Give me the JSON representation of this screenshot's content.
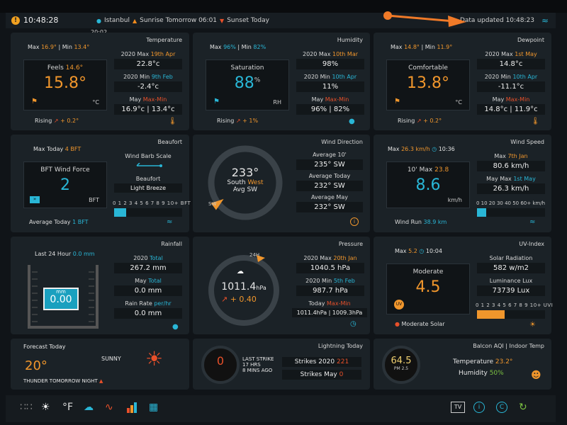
{
  "status": {
    "time": "10:48:28",
    "warning_icon": "!",
    "location": "Istanbul",
    "sunrise": "Sunrise Tomorrow 06:01",
    "sunset": "Sunset Today",
    "updated": "Data updated 10:48:23",
    "sub_time": "20:02"
  },
  "temperature": {
    "title": "Temperature",
    "max_lbl": "Max",
    "max": "16.9°",
    "min_lbl": "| Min",
    "min": "13.4°",
    "feels_lbl": "Feels",
    "feels": "14.6°",
    "value": "15.8°",
    "unit": "°C",
    "s1_lbl_a": "2020 Max",
    "s1_lbl_b": "19th Apr",
    "s1": "22.8°c",
    "s2_lbl_a": "2020 Min",
    "s2_lbl_b": "9th Feb",
    "s2": "-2.4°c",
    "s3_lbl_a": "May",
    "s3_lbl_b": "Max-Min",
    "s3": "16.9°c | 13.4°c",
    "trend_lbl": "Rising",
    "trend": "+ 0.2°"
  },
  "humidity": {
    "title": "Humidity",
    "max_lbl": "Max",
    "max": "96%",
    "min_lbl": "| Min",
    "min": "82%",
    "lbl": "Saturation",
    "value": "88",
    "sup": "%",
    "unit": "RH",
    "s1_lbl_a": "2020 Max",
    "s1_lbl_b": "10th Mar",
    "s1": "98%",
    "s2_lbl_a": "2020 Min",
    "s2_lbl_b": "10th Apr",
    "s2": "11%",
    "s3_lbl_a": "May",
    "s3_lbl_b": "Max-Min",
    "s3": "96% | 82%",
    "trend_lbl": "Rising",
    "trend": "+ 1%"
  },
  "dewpoint": {
    "title": "Dewpoint",
    "max_lbl": "Max",
    "max": "14.8°",
    "min_lbl": "| Min",
    "min": "11.9°",
    "lbl": "Comfortable",
    "value": "13.8°",
    "unit": "°C",
    "s1_lbl_a": "2020 Max",
    "s1_lbl_b": "1st May",
    "s1": "14.8°c",
    "s2_lbl_a": "2020 Min",
    "s2_lbl_b": "10th Apr",
    "s2": "-11.1°c",
    "s3_lbl_a": "May",
    "s3_lbl_b": "Max-Min",
    "s3": "14.8°c | 11.9°c",
    "trend_lbl": "Rising",
    "trend": "+ 0.2°"
  },
  "beaufort": {
    "title": "Beaufort",
    "max_lbl": "Max Today",
    "max": "4 BFT",
    "lbl": "BFT Wind Force",
    "value": "2",
    "unit": "BFT",
    "barb_lbl": "Wind Barb Scale",
    "name_lbl": "Beaufort",
    "name": "Light Breeze",
    "scale": "0 1 2 3 4 5 6 7 8 9 10+ BFT",
    "avg_lbl": "Average Today",
    "avg": "1 BFT",
    "level_fraction": 0.18
  },
  "wind_dir": {
    "title": "Wind Direction",
    "deg": "233°",
    "dir_a": "South",
    "dir_b": "West",
    "avg": "Avg SW",
    "a1_lbl": "Average 10'",
    "a1": "235°  SW",
    "a2_lbl": "Average Today",
    "a2": "232°  SW",
    "a3_lbl": "Average May",
    "a3": "232°  SW",
    "compass_mark": "SW",
    "direction_deg": 233
  },
  "wind_speed": {
    "title": "Wind Speed",
    "max_lbl": "Max",
    "max": "26.3 km/h",
    "time": "10:36",
    "lbl_a": "10'",
    "lbl_b": "Max",
    "lbl_max": "23.8",
    "value": "8.6",
    "unit": "km/h",
    "s1_lbl_a": "Max",
    "s1_lbl_b": "7th Jan",
    "s1": "80.6 km/h",
    "s2_lbl_a": "May Max",
    "s2_lbl_b": "1st May",
    "s2": "26.3 km/h",
    "scale": "0 10 20 30 40 50 60+ km/h",
    "run_lbl": "Wind Run",
    "run": "38.9 km",
    "level_fraction": 0.14
  },
  "rainfall": {
    "title": "Rainfall",
    "last_lbl": "Last 24 Hour",
    "last": "0.0 mm",
    "gauge_unit": "mm",
    "gauge": "0.00",
    "s1_lbl_a": "2020",
    "s1_lbl_b": "Total",
    "s1": "267.2 mm",
    "s2_lbl_a": "May",
    "s2_lbl_b": "Total",
    "s2": "0.0 mm",
    "s3_lbl_a": "Rain Rate",
    "s3_lbl_b": "per/hr",
    "s3": "0.0 mm"
  },
  "pressure": {
    "title": "Pressure",
    "tag": "24H",
    "value": "1011.4",
    "unit": "hPa",
    "trend": "+ 0.40",
    "s1_lbl_a": "2020 Max",
    "s1_lbl_b": "20th Jan",
    "s1": "1040.5 hPa",
    "s2_lbl_a": "2020 Min",
    "s2_lbl_b": "5th Feb",
    "s2": "987.7 hPa",
    "s3_lbl_a": "Today",
    "s3_lbl_b": "Max-Min",
    "s3": "1011.4hPa | 1009.3hPa"
  },
  "uv": {
    "title": "UV-Index",
    "max_lbl": "Max",
    "max": "5.2",
    "time": "10:04",
    "lbl": "Moderate",
    "value": "4.5",
    "badge": "UV",
    "s1_lbl": "Solar Radiation",
    "s1": "582 w/m2",
    "s2_lbl": "Luminance Lux",
    "s2": "73739 Lux",
    "scale": "0 1 2 3 4 5 6 7 8 9 10+ UVI",
    "solar_lbl": "Moderate Solar",
    "level_fraction": 0.41
  },
  "forecast": {
    "title": "Forecast Today",
    "cond": "SUNNY",
    "temp": "20°",
    "note": "THUNDER  TOMORROW NIGHT"
  },
  "lightning": {
    "title": "Lightning Today",
    "count": "0",
    "last_a": "LAST STRIKE",
    "last_b": "17 HRS",
    "last_c": "8 MINS AGO",
    "s1_lbl": "Strikes 2020",
    "s1": "221",
    "s2_lbl": "Strikes May",
    "s2": "0"
  },
  "aqi": {
    "title": "Balcon AQI | Indoor Temp",
    "value": "64.5",
    "unit": "PM 2.5",
    "temp_lbl": "Temperature",
    "temp": "23.2°",
    "hum_lbl": "Humidity",
    "hum": "50%"
  },
  "nav": {
    "items": [
      "grid-icon",
      "sun-icon",
      "°F",
      "cloud-icon",
      "activity-icon",
      "bar-chart-icon",
      "calendar-icon"
    ],
    "right": [
      "TV",
      "i",
      "C"
    ]
  },
  "colors": {
    "accent_orange": "#f0962c",
    "accent_cyan": "#29b6d6",
    "alert_red": "#e8502a",
    "panel": "#1b2227",
    "background": "#101418"
  }
}
